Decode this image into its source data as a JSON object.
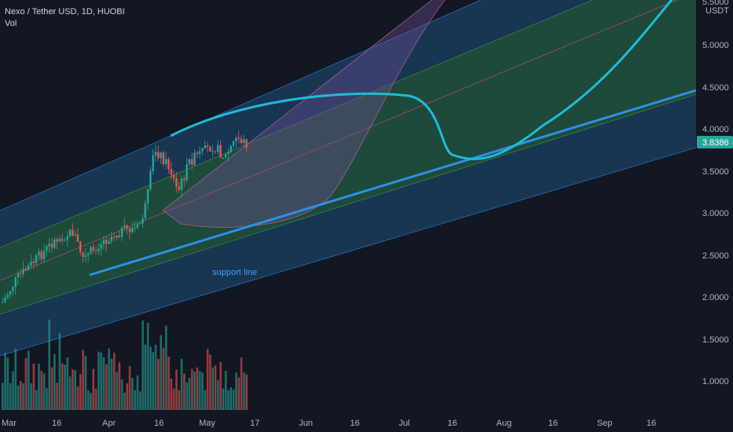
{
  "legend": {
    "symbol": "Nexo / Tether USD, 1D, HUOBI",
    "vol_label": "Vol"
  },
  "price_axis": {
    "unit": "USDT",
    "top_partial": "5.5000",
    "ticks": [
      "5.0000",
      "4.5000",
      "4.0000",
      "3.5000",
      "3.0000",
      "2.5000",
      "2.0000",
      "1.5000",
      "1.0000"
    ],
    "current_price": "3.8386"
  },
  "colors": {
    "background": "#131722",
    "up": "#26a69a",
    "down": "#ef5350",
    "channel_outer": "#1e4f7a",
    "channel_inner": "#1e4d2b",
    "support": "#2f8fe6",
    "curve": "#1fbcd9",
    "arc": "#7b4fa0",
    "price_label_bg": "#26a69a"
  },
  "chart_data": {
    "type": "candlestick",
    "x_ticks": [
      "Mar",
      "16",
      "Apr",
      "16",
      "May",
      "17",
      "Jun",
      "16",
      "Jul",
      "16",
      "Aug",
      "16",
      "Sep",
      "16"
    ],
    "annotations": [
      {
        "text": "support line"
      }
    ]
  }
}
